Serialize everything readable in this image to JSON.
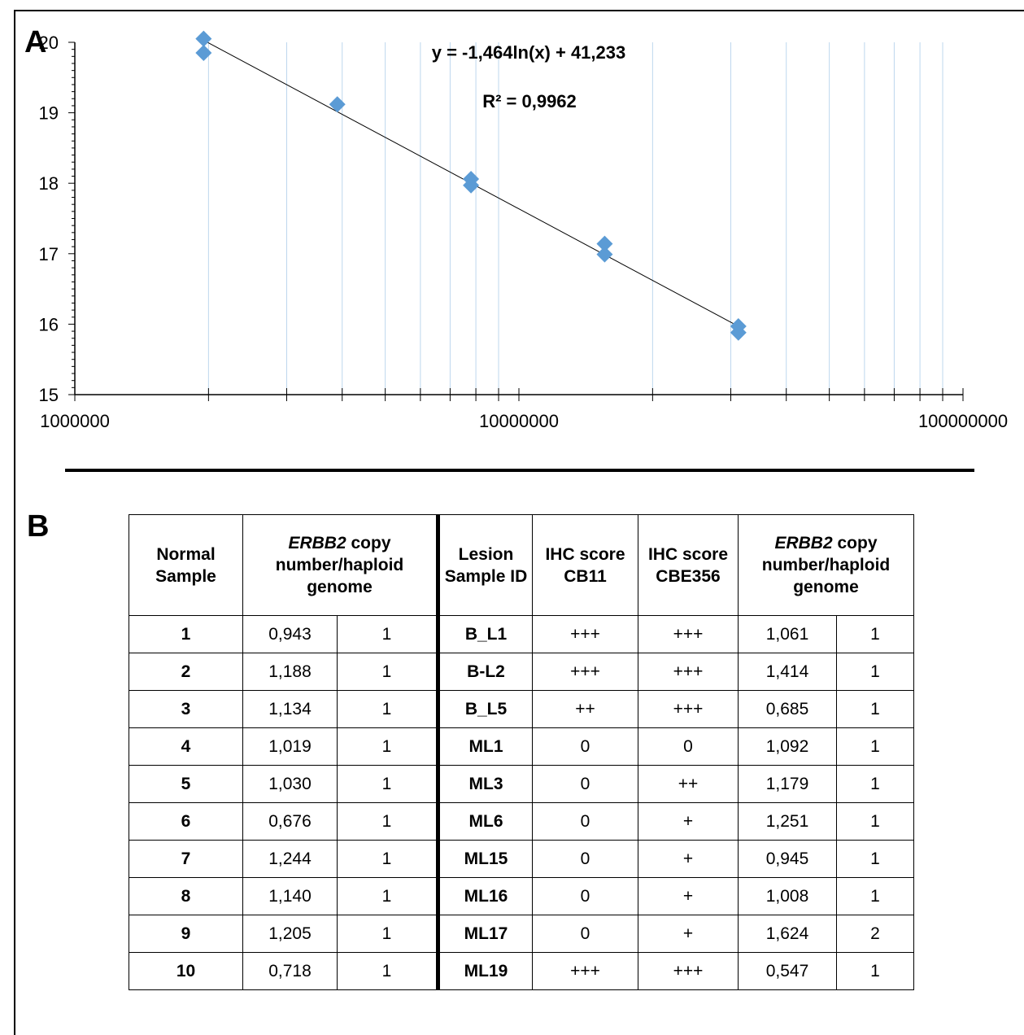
{
  "panels": {
    "a": "A",
    "b": "B"
  },
  "chart_data": {
    "type": "scatter",
    "x_scale": "log",
    "xlim": [
      1000000,
      100000000
    ],
    "ylim": [
      15,
      20
    ],
    "x_ticks": [
      "1000000",
      "10000000",
      "100000000"
    ],
    "y_ticks": [
      "15",
      "16",
      "17",
      "18",
      "19",
      "20"
    ],
    "series": [
      {
        "x": [
          1950000,
          1950000,
          3900000,
          7800000,
          7800000,
          15600000,
          15600000,
          31200000,
          31200000
        ],
        "y": [
          20.05,
          19.85,
          19.12,
          18.06,
          17.97,
          17.14,
          16.99,
          15.97,
          15.88
        ],
        "color": "#5b9bd5"
      }
    ],
    "trendline": {
      "type": "logarithmic",
      "a": -1.464,
      "b": 41.233,
      "color": "#000000"
    },
    "annotations": [
      "y = -1,464ln(x) + 41,233",
      "R² = 0,9962"
    ],
    "grid": {
      "vertical_minor": true,
      "color": "#bdd7ee"
    },
    "legend": "none"
  },
  "table": {
    "headers": {
      "normal_sample": "Normal Sample",
      "gene": "ERBB2",
      "copy_rest": " copy number/haploid genome",
      "lesion_id": "Lesion Sample ID",
      "ihc_cb11": "IHC score CB11",
      "ihc_cbe356": "IHC score CBE356"
    },
    "rows": [
      {
        "n": "1",
        "nv": "0,943",
        "nc": "1",
        "id": "B_L1",
        "cb11": "+++",
        "cbe": "+++",
        "lv": "1,061",
        "lc": "1"
      },
      {
        "n": "2",
        "nv": "1,188",
        "nc": "1",
        "id": "B-L2",
        "cb11": "+++",
        "cbe": "+++",
        "lv": "1,414",
        "lc": "1"
      },
      {
        "n": "3",
        "nv": "1,134",
        "nc": "1",
        "id": "B_L5",
        "cb11": "++",
        "cbe": "+++",
        "lv": "0,685",
        "lc": "1"
      },
      {
        "n": "4",
        "nv": "1,019",
        "nc": "1",
        "id": "ML1",
        "cb11": "0",
        "cbe": "0",
        "lv": "1,092",
        "lc": "1"
      },
      {
        "n": "5",
        "nv": "1,030",
        "nc": "1",
        "id": "ML3",
        "cb11": "0",
        "cbe": "++",
        "lv": "1,179",
        "lc": "1"
      },
      {
        "n": "6",
        "nv": "0,676",
        "nc": "1",
        "id": "ML6",
        "cb11": "0",
        "cbe": "+",
        "lv": "1,251",
        "lc": "1"
      },
      {
        "n": "7",
        "nv": "1,244",
        "nc": "1",
        "id": "ML15",
        "cb11": "0",
        "cbe": "+",
        "lv": "0,945",
        "lc": "1"
      },
      {
        "n": "8",
        "nv": "1,140",
        "nc": "1",
        "id": "ML16",
        "cb11": "0",
        "cbe": "+",
        "lv": "1,008",
        "lc": "1"
      },
      {
        "n": "9",
        "nv": "1,205",
        "nc": "1",
        "id": "ML17",
        "cb11": "0",
        "cbe": "+",
        "lv": "1,624",
        "lc": "2"
      },
      {
        "n": "10",
        "nv": "0,718",
        "nc": "1",
        "id": "ML19",
        "cb11": "+++",
        "cbe": "+++",
        "lv": "0,547",
        "lc": "1"
      }
    ]
  }
}
